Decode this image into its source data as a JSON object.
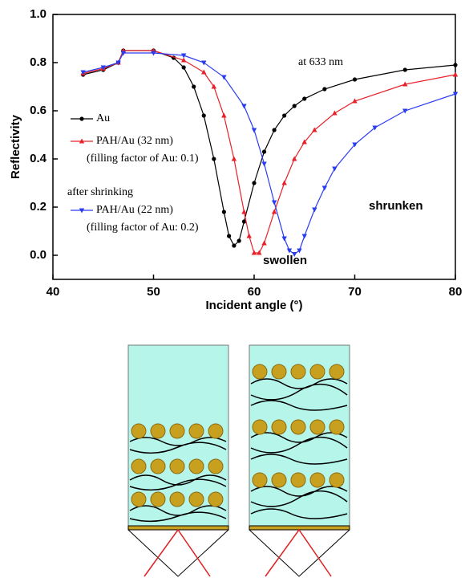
{
  "chart_data": {
    "type": "line",
    "xlabel": "Incident angle (°)",
    "ylabel": "Reflectivity",
    "xlim": [
      40,
      80
    ],
    "xticks": [
      40,
      50,
      60,
      70,
      80
    ],
    "ylim": [
      -0.1,
      1.0
    ],
    "yticks": [
      {
        "value": 0,
        "label": "0.0"
      },
      0.2,
      0.4,
      0.6,
      0.8,
      {
        "value": 1,
        "label": "1.0"
      }
    ],
    "series": [
      {
        "name": "Au",
        "color": "#000000",
        "marker": "circle",
        "x": [
          43,
          45,
          46.5,
          47,
          50,
          52,
          53,
          54,
          55,
          56,
          57,
          57.5,
          58,
          58.5,
          59,
          60,
          61,
          62,
          63,
          64,
          65,
          67,
          70,
          75,
          80
        ],
        "values": [
          0.75,
          0.77,
          0.8,
          0.85,
          0.85,
          0.82,
          0.78,
          0.7,
          0.58,
          0.4,
          0.18,
          0.08,
          0.04,
          0.06,
          0.14,
          0.3,
          0.43,
          0.52,
          0.58,
          0.62,
          0.65,
          0.69,
          0.73,
          0.77,
          0.79
        ]
      },
      {
        "name": "PAH/Au (32 nm)",
        "color": "#e8202a",
        "marker": "triangle-up",
        "x": [
          43,
          45,
          46.5,
          47,
          50,
          53,
          55,
          56,
          57,
          58,
          59,
          59.5,
          60,
          60.5,
          61,
          62,
          63,
          64,
          65,
          66,
          68,
          70,
          75,
          80
        ],
        "values": [
          0.755,
          0.775,
          0.8,
          0.85,
          0.85,
          0.81,
          0.76,
          0.7,
          0.58,
          0.4,
          0.18,
          0.08,
          0.01,
          0.01,
          0.05,
          0.18,
          0.3,
          0.4,
          0.47,
          0.52,
          0.59,
          0.64,
          0.71,
          0.75
        ]
      },
      {
        "name": "PAH/Au (22 nm)",
        "color": "#2a3cf0",
        "marker": "triangle-down",
        "x": [
          43,
          45,
          46.5,
          47,
          50,
          53,
          55,
          57,
          59,
          60,
          61,
          62,
          63,
          63.5,
          64,
          64.5,
          65,
          66,
          67,
          68,
          70,
          72,
          75,
          80
        ],
        "values": [
          0.76,
          0.78,
          0.8,
          0.84,
          0.84,
          0.83,
          0.8,
          0.74,
          0.62,
          0.52,
          0.38,
          0.22,
          0.07,
          0.02,
          0.005,
          0.02,
          0.08,
          0.19,
          0.28,
          0.36,
          0.46,
          0.53,
          0.6,
          0.67
        ]
      }
    ],
    "annotations": [
      "at 633 nm",
      "swollen",
      "shrunken"
    ],
    "legend_notes": [
      "(filling factor of Au: 0.1)",
      "after shrinking",
      "(filling factor of Au: 0.2)"
    ]
  }
}
